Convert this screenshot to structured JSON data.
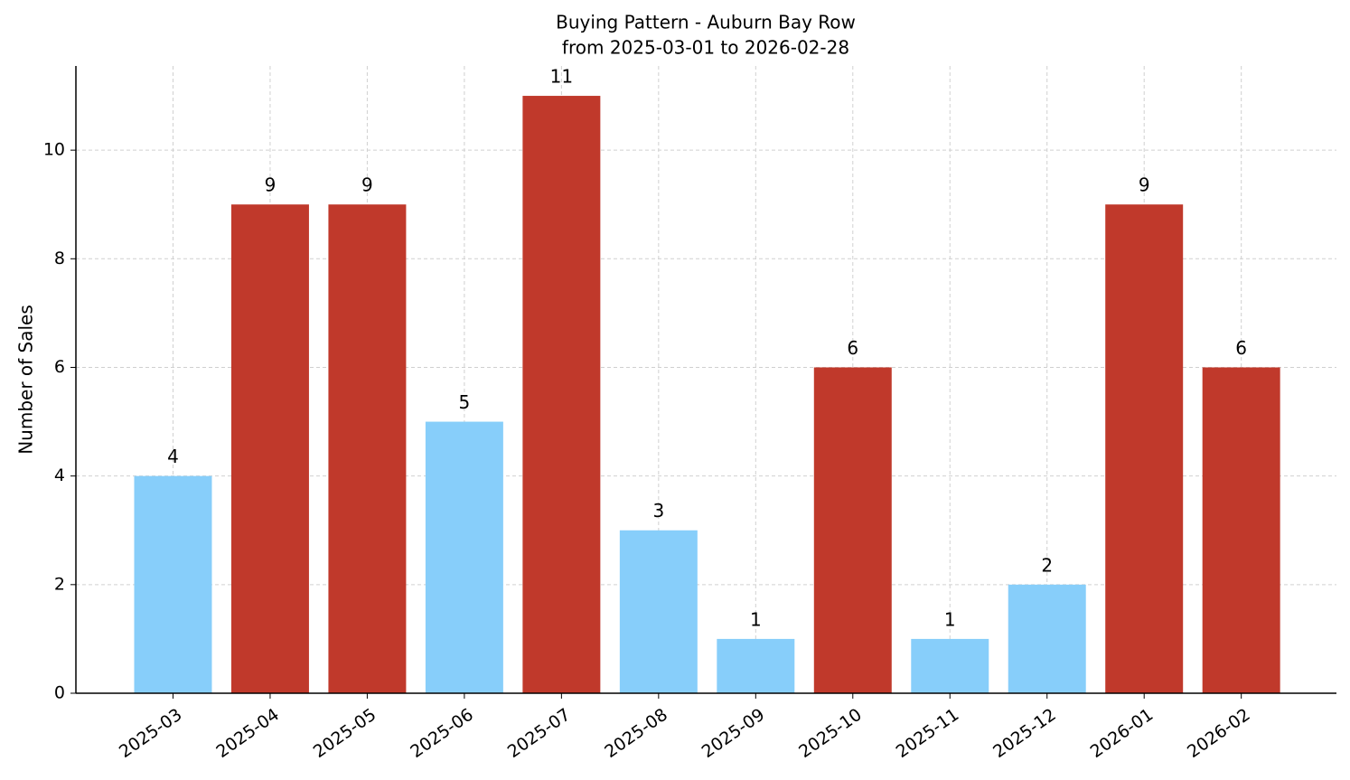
{
  "chart_data": {
    "type": "bar",
    "title": "Buying Pattern - Auburn Bay Row",
    "subtitle": "from 2025-03-01 to 2026-02-28",
    "y_label": "Number of Sales",
    "categories": [
      "2025-03",
      "2025-04",
      "2025-05",
      "2025-06",
      "2025-07",
      "2025-08",
      "2025-09",
      "2025-10",
      "2025-11",
      "2025-12",
      "2026-01",
      "2026-02"
    ],
    "values": [
      4,
      9,
      9,
      5,
      11,
      3,
      1,
      6,
      1,
      2,
      9,
      6
    ],
    "colors": [
      "#87cefa",
      "#c0392b",
      "#c0392b",
      "#87cefa",
      "#c0392b",
      "#87cefa",
      "#87cefa",
      "#c0392b",
      "#87cefa",
      "#87cefa",
      "#c0392b",
      "#c0392b"
    ],
    "ylim": [
      0,
      11.55
    ],
    "yticks": [
      0,
      2,
      4,
      6,
      8,
      10
    ],
    "grid": true
  }
}
